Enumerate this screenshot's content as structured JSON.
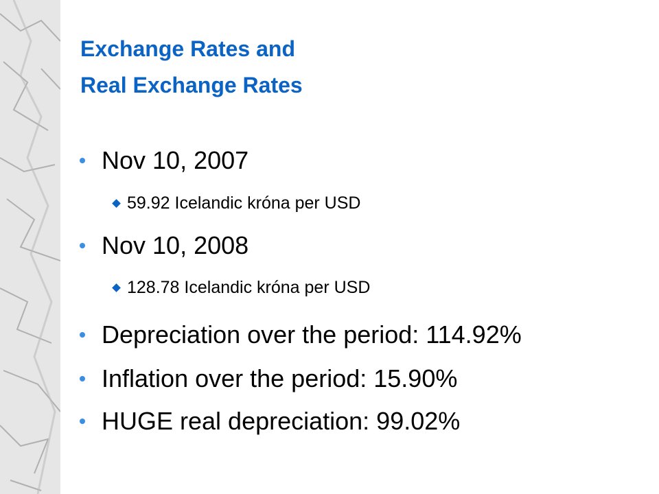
{
  "slide": {
    "title": [
      "Exchange Rates and",
      "Real Exchange Rates"
    ],
    "bullets": [
      {
        "text": "Nov 10, 2007",
        "sub": [
          "59.92 Icelandic króna per USD"
        ]
      },
      {
        "text": "Nov 10, 2008",
        "sub": [
          "128.78 Icelandic króna per USD"
        ]
      },
      {
        "text": "Depreciation over the period: 114.92%"
      },
      {
        "text": "Inflation over the period: 15.90%"
      },
      {
        "text": "HUGE real depreciation: 99.02%"
      }
    ]
  }
}
